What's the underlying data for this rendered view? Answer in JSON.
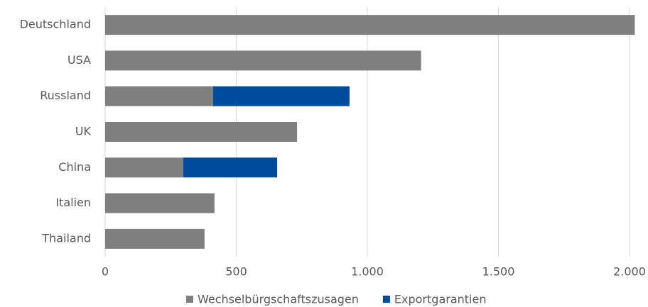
{
  "chart_data": {
    "type": "stacked-bar-horizontal",
    "categories": [
      "Deutschland",
      "USA",
      "Russland",
      "UK",
      "China",
      "Italien",
      "Thailand"
    ],
    "series": [
      {
        "name": "Wechselbürgschaftszusagen",
        "color": "#7f7f7f",
        "values": [
          2020,
          1205,
          412,
          732,
          298,
          417,
          379
        ]
      },
      {
        "name": "Exportgarantien",
        "color": "#004b9b",
        "values": [
          null,
          null,
          520,
          null,
          358,
          null,
          null
        ]
      }
    ],
    "xlim": [
      0,
      2000
    ],
    "xticks": [
      0,
      500,
      {
        "value": 1000,
        "label": "1.000"
      },
      {
        "value": 1500,
        "label": "1.500"
      },
      {
        "value": 2000,
        "label": "2.000"
      }
    ],
    "grid": true
  }
}
